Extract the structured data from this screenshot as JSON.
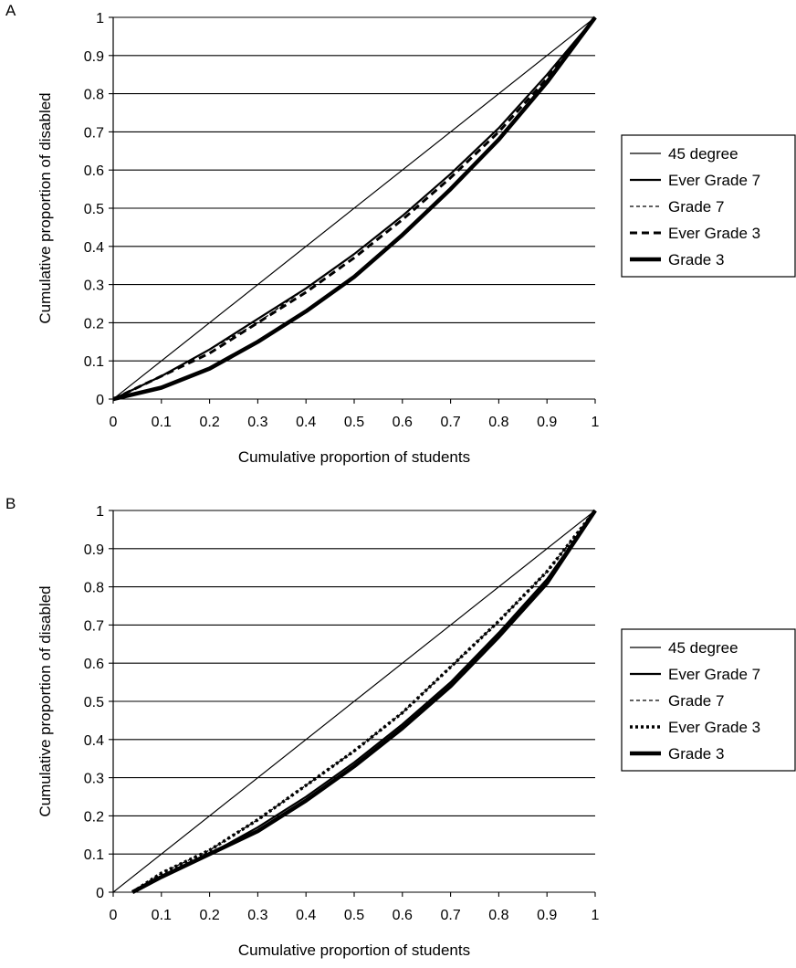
{
  "chart_data": [
    {
      "panel": "A",
      "type": "line",
      "xlabel": "Cumulative proportion of students",
      "ylabel": "Cumulative proportion of disabled",
      "xlim": [
        0,
        1
      ],
      "ylim": [
        0,
        1
      ],
      "xticks": [
        "0",
        "0.1",
        "0.2",
        "0.3",
        "0.4",
        "0.5",
        "0.6",
        "0.7",
        "0.8",
        "0.9",
        "1"
      ],
      "yticks": [
        "0",
        "0.1",
        "0.2",
        "0.3",
        "0.4",
        "0.5",
        "0.6",
        "0.7",
        "0.8",
        "0.9",
        "1"
      ],
      "grid": "horizontal",
      "legend_position": "right",
      "series": [
        {
          "name": "45 degree",
          "style": "thin-solid",
          "x": [
            0,
            1
          ],
          "y": [
            0,
            1
          ]
        },
        {
          "name": "Ever Grade 7",
          "style": "solid",
          "x": [
            0,
            0.1,
            0.2,
            0.3,
            0.4,
            0.5,
            0.6,
            0.7,
            0.8,
            0.9,
            1
          ],
          "y": [
            0,
            0.06,
            0.13,
            0.21,
            0.29,
            0.38,
            0.48,
            0.59,
            0.71,
            0.85,
            1
          ]
        },
        {
          "name": "Grade 7",
          "style": "thin-dashed",
          "x": [
            0,
            0.1,
            0.2,
            0.3,
            0.4,
            0.5,
            0.6,
            0.7,
            0.8,
            0.9,
            1
          ],
          "y": [
            0,
            0.06,
            0.13,
            0.2,
            0.29,
            0.38,
            0.48,
            0.59,
            0.71,
            0.85,
            1
          ]
        },
        {
          "name": "Ever Grade 3",
          "style": "dashed",
          "x": [
            0,
            0.1,
            0.2,
            0.3,
            0.4,
            0.5,
            0.6,
            0.7,
            0.8,
            0.9,
            1
          ],
          "y": [
            0,
            0.06,
            0.12,
            0.2,
            0.28,
            0.37,
            0.47,
            0.58,
            0.7,
            0.84,
            1
          ]
        },
        {
          "name": "Grade 3",
          "style": "thick-solid",
          "x": [
            0,
            0.1,
            0.2,
            0.3,
            0.4,
            0.5,
            0.6,
            0.7,
            0.8,
            0.9,
            1
          ],
          "y": [
            0,
            0.03,
            0.08,
            0.15,
            0.23,
            0.32,
            0.43,
            0.55,
            0.68,
            0.83,
            1
          ]
        }
      ]
    },
    {
      "panel": "B",
      "type": "line",
      "xlabel": "Cumulative proportion of students",
      "ylabel": "Cumulative proportion of disabled",
      "xlim": [
        0,
        1
      ],
      "ylim": [
        0,
        1
      ],
      "xticks": [
        "0",
        "0.1",
        "0.2",
        "0.3",
        "0.4",
        "0.5",
        "0.6",
        "0.7",
        "0.8",
        "0.9",
        "1"
      ],
      "yticks": [
        "0",
        "0.1",
        "0.2",
        "0.3",
        "0.4",
        "0.5",
        "0.6",
        "0.7",
        "0.8",
        "0.9",
        "1"
      ],
      "grid": "horizontal",
      "legend_position": "right",
      "series": [
        {
          "name": "45 degree",
          "style": "thin-solid",
          "x": [
            0,
            1
          ],
          "y": [
            0,
            1
          ]
        },
        {
          "name": "Ever Grade 7",
          "style": "solid",
          "x": [
            0.04,
            0.1,
            0.2,
            0.3,
            0.4,
            0.5,
            0.6,
            0.7,
            0.8,
            0.9,
            1
          ],
          "y": [
            0,
            0.04,
            0.1,
            0.17,
            0.25,
            0.34,
            0.44,
            0.55,
            0.68,
            0.82,
            1
          ]
        },
        {
          "name": "Grade 7",
          "style": "thin-dashed",
          "x": [
            0.04,
            0.1,
            0.2,
            0.3,
            0.4,
            0.5,
            0.6,
            0.7,
            0.8,
            0.9,
            1
          ],
          "y": [
            0,
            0.05,
            0.11,
            0.19,
            0.28,
            0.37,
            0.47,
            0.59,
            0.71,
            0.84,
            1
          ]
        },
        {
          "name": "Ever Grade 3",
          "style": "dotted",
          "x": [
            0.04,
            0.1,
            0.2,
            0.3,
            0.4,
            0.5,
            0.6,
            0.7,
            0.8,
            0.9,
            1
          ],
          "y": [
            0,
            0.05,
            0.11,
            0.19,
            0.28,
            0.37,
            0.47,
            0.59,
            0.71,
            0.84,
            1
          ]
        },
        {
          "name": "Grade 3",
          "style": "thick-solid",
          "x": [
            0.04,
            0.1,
            0.2,
            0.3,
            0.4,
            0.5,
            0.6,
            0.7,
            0.8,
            0.9,
            1
          ],
          "y": [
            0,
            0.04,
            0.1,
            0.16,
            0.24,
            0.33,
            0.43,
            0.54,
            0.67,
            0.81,
            1
          ]
        }
      ]
    }
  ]
}
